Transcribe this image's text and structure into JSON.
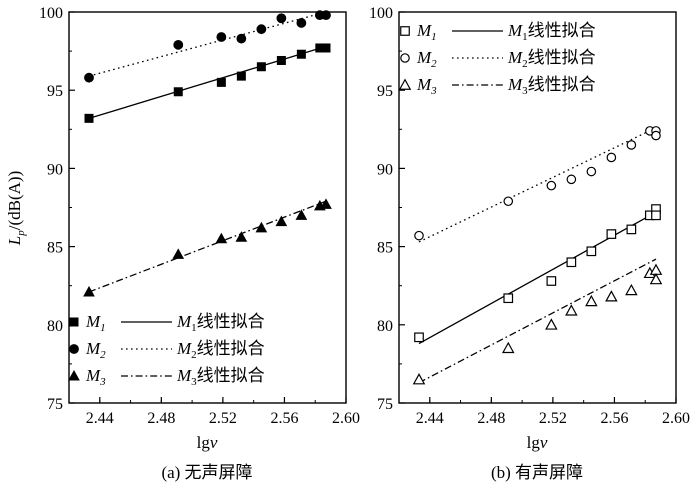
{
  "chart_data": [
    {
      "type": "scatter",
      "panel": "a",
      "caption": "(a) 无声屏障",
      "xlabel": "lgv",
      "ylabel": "Lp/(dB(A))",
      "xlim": [
        2.42,
        2.6
      ],
      "ylim": [
        75,
        100
      ],
      "xticks": [
        "2.44",
        "2.48",
        "2.52",
        "2.56",
        "2.60"
      ],
      "yticks": [
        "75",
        "80",
        "85",
        "90",
        "95",
        "100"
      ],
      "legend_position": "bottom-right",
      "marker_fill": "filled",
      "series": [
        {
          "name": "M1",
          "marker": "square",
          "fit_style": "solid",
          "legend_label": "M1",
          "fit_label": "M1线性拟合",
          "x": [
            2.433,
            2.491,
            2.519,
            2.532,
            2.545,
            2.558,
            2.571,
            2.583,
            2.587
          ],
          "y": [
            93.2,
            94.9,
            95.5,
            95.9,
            96.5,
            96.9,
            97.3,
            97.7,
            97.7
          ],
          "fit": [
            [
              2.433,
              93.2
            ],
            [
              2.587,
              97.8
            ]
          ]
        },
        {
          "name": "M2",
          "marker": "circle",
          "fit_style": "dotted",
          "legend_label": "M2",
          "fit_label": "M2线性拟合",
          "x": [
            2.433,
            2.491,
            2.519,
            2.532,
            2.545,
            2.558,
            2.571,
            2.583,
            2.587
          ],
          "y": [
            95.8,
            97.9,
            98.4,
            98.3,
            98.9,
            99.6,
            99.3,
            99.8,
            99.8
          ],
          "fit": [
            [
              2.433,
              95.9
            ],
            [
              2.587,
              100
            ]
          ]
        },
        {
          "name": "M3",
          "marker": "triangle",
          "fit_style": "dash-dot",
          "legend_label": "M3",
          "fit_label": "M3线性拟合",
          "x": [
            2.433,
            2.491,
            2.519,
            2.532,
            2.545,
            2.558,
            2.571,
            2.583,
            2.587
          ],
          "y": [
            82.1,
            84.5,
            85.5,
            85.6,
            86.2,
            86.6,
            87.0,
            87.6,
            87.7
          ],
          "fit": [
            [
              2.433,
              82.1
            ],
            [
              2.587,
              87.9
            ]
          ]
        }
      ]
    },
    {
      "type": "scatter",
      "panel": "b",
      "caption": "(b) 有声屏障",
      "xlabel": "lgv",
      "ylabel": "",
      "xlim": [
        2.42,
        2.6
      ],
      "ylim": [
        75,
        100
      ],
      "xticks": [
        "2.44",
        "2.48",
        "2.52",
        "2.56",
        "2.60"
      ],
      "yticks": [
        "75",
        "80",
        "85",
        "90",
        "95",
        "100"
      ],
      "legend_position": "top-right",
      "marker_fill": "open",
      "series": [
        {
          "name": "M1",
          "marker": "square",
          "fit_style": "solid",
          "legend_label": "M1",
          "fit_label": "M1线性拟合",
          "x": [
            2.433,
            2.491,
            2.519,
            2.532,
            2.545,
            2.558,
            2.571,
            2.583,
            2.587,
            2.587
          ],
          "y": [
            79.2,
            81.7,
            82.8,
            84.0,
            84.7,
            85.8,
            86.1,
            87.0,
            87.4,
            87.0
          ],
          "fit": [
            [
              2.433,
              78.8
            ],
            [
              2.587,
              87.2
            ]
          ]
        },
        {
          "name": "M2",
          "marker": "circle",
          "fit_style": "dotted",
          "legend_label": "M2",
          "fit_label": "M2线性拟合",
          "x": [
            2.433,
            2.491,
            2.519,
            2.532,
            2.545,
            2.558,
            2.571,
            2.583,
            2.587,
            2.587
          ],
          "y": [
            85.7,
            87.9,
            88.9,
            89.3,
            89.8,
            90.7,
            91.5,
            92.4,
            92.4,
            92.1
          ],
          "fit": [
            [
              2.433,
              85.3
            ],
            [
              2.587,
              92.6
            ]
          ]
        },
        {
          "name": "M3",
          "marker": "triangle",
          "fit_style": "dash-dot",
          "legend_label": "M3",
          "fit_label": "M3线性拟合",
          "x": [
            2.433,
            2.491,
            2.519,
            2.532,
            2.545,
            2.558,
            2.571,
            2.583,
            2.587,
            2.587
          ],
          "y": [
            76.5,
            78.5,
            80.0,
            80.9,
            81.5,
            81.8,
            82.2,
            83.3,
            83.5,
            82.9
          ],
          "fit": [
            [
              2.433,
              76.3
            ],
            [
              2.587,
              84.2
            ]
          ]
        }
      ]
    }
  ]
}
